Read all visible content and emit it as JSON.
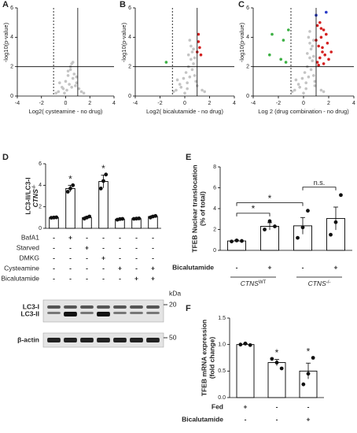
{
  "chart_data": [
    {
      "type": "scatter",
      "panel_label": "A",
      "x_label": "Log2( cysteamine - no drug)",
      "y_label": "-log10(p-value)",
      "xlim": [
        -4,
        4
      ],
      "ylim": [
        0,
        6
      ],
      "xticks": [
        -4,
        -2,
        0,
        2,
        4
      ],
      "yticks": [
        0,
        2,
        4,
        6
      ],
      "hline": 2,
      "vlines": [
        -1,
        1
      ],
      "series": [
        {
          "color": "#c4c4c4",
          "x": [
            -0.6,
            -0.3,
            0,
            0.2,
            0.4,
            0.5,
            0.7,
            0.9,
            1.1,
            -0.8,
            0.3,
            0.6,
            0.1,
            -0.2,
            0.8,
            1.3,
            0.4,
            0.2,
            -0.5,
            1.5,
            0.5,
            0.9,
            -0.1,
            0.6
          ],
          "values": [
            0.3,
            0.6,
            1.0,
            1.4,
            1.8,
            2.2,
            1.5,
            0.9,
            0.5,
            0.2,
            0.8,
            1.2,
            0.4,
            0.5,
            0.7,
            0.3,
            2.0,
            1.7,
            0.9,
            0.2,
            0.6,
            1.3,
            0.2,
            2.3
          ]
        }
      ]
    },
    {
      "type": "scatter",
      "panel_label": "B",
      "x_label": "Log2( bicalutamide - no drug)",
      "y_label": "-log10(p-value)",
      "xlim": [
        -4,
        4
      ],
      "ylim": [
        0,
        6
      ],
      "xticks": [
        -4,
        -2,
        0,
        2,
        4
      ],
      "yticks": [
        0,
        2,
        4,
        6
      ],
      "hline": 2,
      "vlines": [
        -1,
        1
      ],
      "series": [
        {
          "color": "#c4c4c4",
          "x": [
            -0.7,
            -0.4,
            -0.1,
            0.1,
            0.3,
            0.5,
            0.6,
            0.8,
            1.0,
            -0.9,
            0.2,
            0.4,
            0.7,
            -0.3,
            0.9,
            1.4,
            0.5,
            0.3,
            -0.6,
            1.6,
            0.6,
            0.8,
            0.0,
            0.4,
            0.7,
            0.2
          ],
          "values": [
            0.4,
            0.8,
            1.2,
            1.6,
            2.0,
            2.5,
            3.0,
            1.4,
            0.7,
            0.3,
            0.9,
            1.3,
            2.2,
            0.6,
            1.0,
            0.4,
            3.4,
            2.8,
            1.1,
            0.3,
            1.8,
            2.6,
            0.2,
            3.8,
            3.2,
            0.5
          ]
        },
        {
          "color": "#d42020",
          "x": [
            1.1,
            1.2,
            1.0,
            1.3,
            1.1
          ],
          "values": [
            3.7,
            3.3,
            3.0,
            2.8,
            4.2
          ]
        },
        {
          "color": "#3cb043",
          "x": [
            -1.5
          ],
          "values": [
            2.3
          ]
        }
      ]
    },
    {
      "type": "scatter",
      "panel_label": "C",
      "x_label": "Log 2 (drug combination - no drug)",
      "y_label": "-log10(p-value)",
      "xlim": [
        -4,
        4
      ],
      "ylim": [
        0,
        6
      ],
      "xticks": [
        -4,
        -2,
        0,
        2,
        4
      ],
      "yticks": [
        0,
        2,
        4,
        6
      ],
      "hline": 2,
      "vlines": [
        -1,
        1
      ],
      "series": [
        {
          "color": "#c4c4c4",
          "x": [
            -0.7,
            -0.4,
            -0.1,
            0.1,
            0.3,
            0.5,
            0.6,
            0.8,
            0.9,
            -0.9,
            0.2,
            0.4,
            0.7,
            -0.3,
            0.9,
            1.4,
            0.5,
            0.3,
            -0.6,
            1.6,
            0.6,
            0.8,
            0.0,
            0.4,
            0.7,
            0.2,
            0.5,
            0.8
          ],
          "values": [
            0.4,
            0.8,
            1.2,
            1.6,
            2.0,
            2.6,
            3.2,
            1.4,
            0.7,
            0.3,
            0.9,
            1.3,
            2.4,
            0.6,
            1.0,
            0.4,
            3.6,
            2.9,
            1.1,
            0.3,
            1.8,
            2.7,
            0.2,
            4.0,
            3.4,
            0.5,
            4.4,
            3.8
          ]
        },
        {
          "color": "#d42020",
          "x": [
            1.1,
            1.3,
            1.5,
            1.2,
            1.7,
            1.9,
            1.4,
            1.6,
            2.0,
            1.1,
            1.3,
            1.8,
            1.5,
            2.2,
            1.2,
            1.6,
            1.0,
            1.4
          ],
          "values": [
            2.3,
            2.6,
            3.0,
            3.4,
            2.8,
            3.6,
            4.0,
            4.5,
            2.5,
            4.8,
            5.0,
            4.2,
            3.3,
            3.0,
            2.1,
            2.2,
            3.8,
            4.6
          ]
        },
        {
          "color": "#2a3cc8",
          "x": [
            1.0,
            1.8
          ],
          "values": [
            5.5,
            5.7
          ]
        },
        {
          "color": "#3cb043",
          "x": [
            -2.5,
            -1.6,
            -1.8,
            -1.2,
            -2.7,
            -1.4
          ],
          "values": [
            4.2,
            3.8,
            2.5,
            4.5,
            2.8,
            2.3
          ]
        }
      ]
    },
    {
      "type": "bar",
      "panel_label": "D",
      "y_label": [
        "LC3-II/LC3-I"
      ],
      "y_label_gene": {
        "text": "CTNS",
        "sup": "-/-"
      },
      "ylim": [
        0,
        6
      ],
      "yticks": [
        0,
        2,
        4,
        6
      ],
      "values": [
        1.0,
        3.7,
        1.0,
        4.35,
        0.85,
        0.9,
        1.1
      ],
      "errors": [
        0.03,
        0.3,
        0.1,
        0.6,
        0.04,
        0.03,
        0.08
      ],
      "points": [
        [
          0.98,
          1.0,
          1.02
        ],
        [
          3.4,
          3.7,
          4.0
        ],
        [
          0.9,
          1.0,
          1.1
        ],
        [
          3.7,
          4.4,
          5.0
        ],
        [
          0.8,
          0.86,
          0.88
        ],
        [
          0.88,
          0.9,
          0.92
        ],
        [
          1.0,
          1.1,
          1.15
        ]
      ],
      "markers": [
        null,
        "*",
        null,
        "*",
        null,
        null,
        null
      ],
      "conditions": [
        {
          "name": "BafA1",
          "signs": [
            "-",
            "+",
            "-",
            "-",
            "-",
            "-",
            "-"
          ]
        },
        {
          "name": "Starved",
          "signs": [
            "-",
            "-",
            "+",
            "-",
            "-",
            "-",
            "-"
          ]
        },
        {
          "name": "DMKG",
          "signs": [
            "-",
            "-",
            "-",
            "+",
            "-",
            "-",
            "-"
          ]
        },
        {
          "name": "Cysteamine",
          "signs": [
            "-",
            "-",
            "-",
            "-",
            "+",
            "-",
            "+"
          ]
        },
        {
          "name": "Bicalutamide",
          "signs": [
            "-",
            "-",
            "-",
            "-",
            "-",
            "+",
            "+"
          ]
        }
      ],
      "blot": {
        "bands": [
          "LC3-I",
          "LC3-II",
          "β-actin"
        ],
        "unit": "kDa",
        "sizes": [
          20,
          50
        ]
      }
    },
    {
      "type": "bar",
      "panel_label": "E",
      "y_label": [
        "TFEB Nuclear translocation",
        "(% of total)"
      ],
      "ylim": [
        0,
        8
      ],
      "yticks": [
        0,
        2,
        4,
        6,
        8
      ],
      "values": [
        0.9,
        2.3,
        2.35,
        3.05
      ],
      "errors": [
        0.08,
        0.35,
        0.8,
        1.1
      ],
      "points": [
        [
          0.85,
          0.95,
          0.9
        ],
        [
          2.0,
          2.8,
          2.3
        ],
        [
          1.2,
          2.2,
          3.8
        ],
        [
          1.5,
          2.7,
          5.3
        ]
      ],
      "brackets": [
        {
          "from": 0,
          "to": 1,
          "label": "*"
        },
        {
          "from": 0,
          "to": 2,
          "label": "*"
        },
        {
          "from": 2,
          "to": 3,
          "label": "n.s."
        }
      ],
      "conditions": [
        {
          "name": "Bicalutamide",
          "signs": [
            "-",
            "+",
            "-",
            "+"
          ]
        }
      ],
      "groups": [
        {
          "text": "CTNS",
          "sup": "WT",
          "from": 0,
          "to": 1
        },
        {
          "text": "CTNS",
          "sup": "-/-",
          "from": 2,
          "to": 3
        }
      ]
    },
    {
      "type": "bar",
      "panel_label": "F",
      "y_label": [
        "TFEB mRNA expression",
        "(fold change)"
      ],
      "ylim": [
        0,
        1.5
      ],
      "yticks": [
        {
          "value": 0,
          "label": "0.0"
        },
        {
          "value": 0.5,
          "label": "0.5"
        },
        {
          "value": 1,
          "label": "1.0"
        },
        {
          "value": 1.5,
          "label": "1.5"
        }
      ],
      "values": [
        1.0,
        0.66,
        0.5
      ],
      "errors": [
        0.02,
        0.06,
        0.15
      ],
      "points": [
        [
          1.0,
          1.02,
          0.99
        ],
        [
          0.73,
          0.66,
          0.55
        ],
        [
          0.25,
          0.45,
          0.75
        ]
      ],
      "markers": [
        null,
        "*",
        "*"
      ],
      "conditions": [
        {
          "name": "Fed",
          "signs": [
            "+",
            "-",
            "-"
          ]
        },
        {
          "name": "Bicalutamide",
          "signs": [
            "-",
            "-",
            "+"
          ]
        }
      ]
    }
  ]
}
